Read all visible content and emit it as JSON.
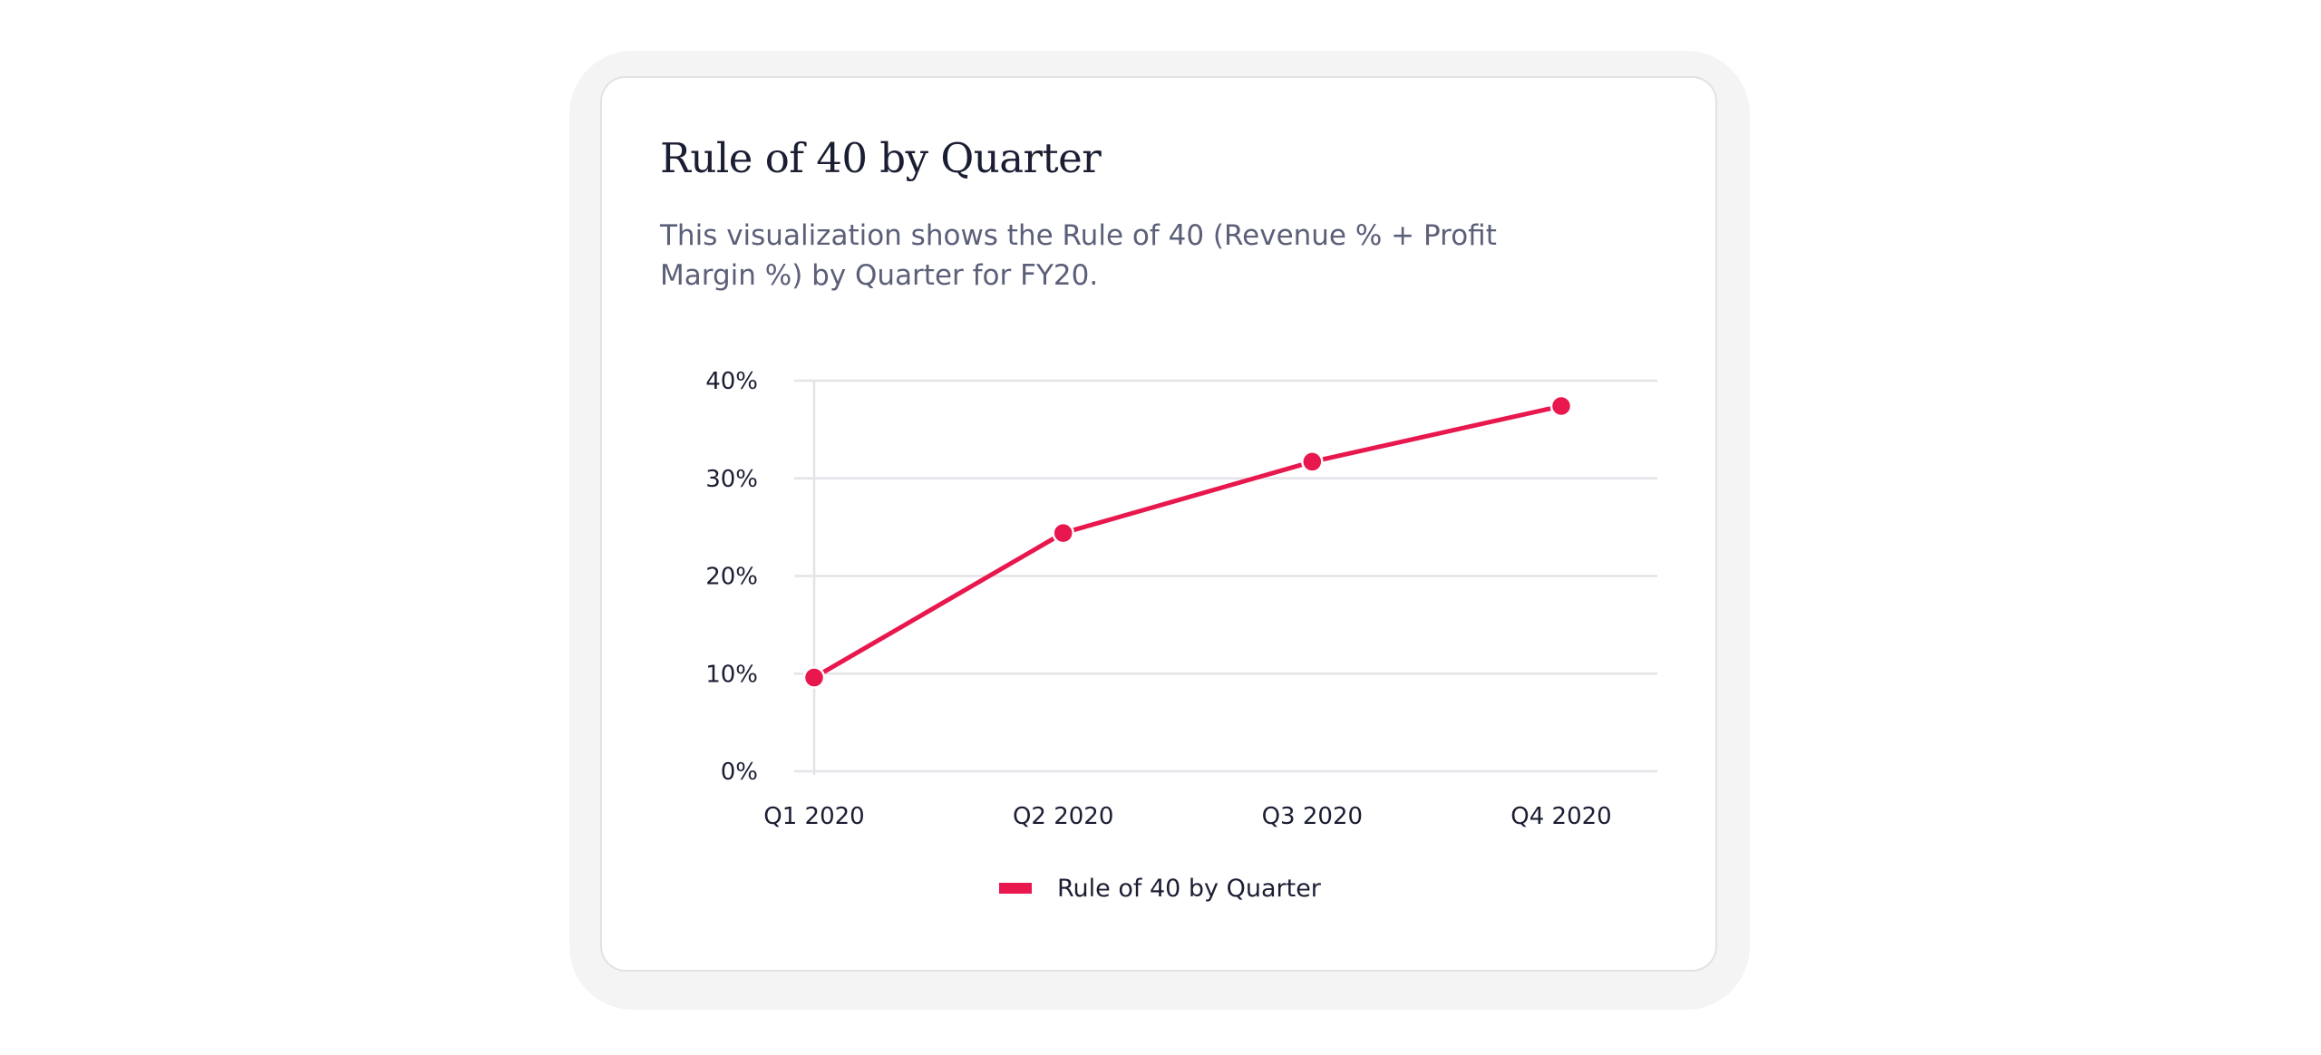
{
  "card": {
    "title": "Rule of 40 by Quarter",
    "subtitle": "This visualization shows the Rule of 40 (Revenue % + Profit Margin %) by Quarter for FY20."
  },
  "colors": {
    "series": "#e8174e",
    "grid": "#e3e3e8",
    "text": "#1b1e33",
    "subtitle": "#5b5f78"
  },
  "chart_data": {
    "type": "line",
    "categories": [
      "Q1 2020",
      "Q2 2020",
      "Q3 2020",
      "Q4 2020"
    ],
    "series": [
      {
        "name": "Rule of 40 by Quarter",
        "values": [
          9.6,
          24.4,
          31.7,
          37.4
        ]
      }
    ],
    "ylim": [
      0,
      40
    ],
    "yticks": [
      0,
      10,
      20,
      30,
      40
    ],
    "ytick_labels": [
      "0%",
      "10%",
      "20%",
      "30%",
      "40%"
    ],
    "grid": true,
    "legend_position": "bottom-center",
    "markers": true
  }
}
